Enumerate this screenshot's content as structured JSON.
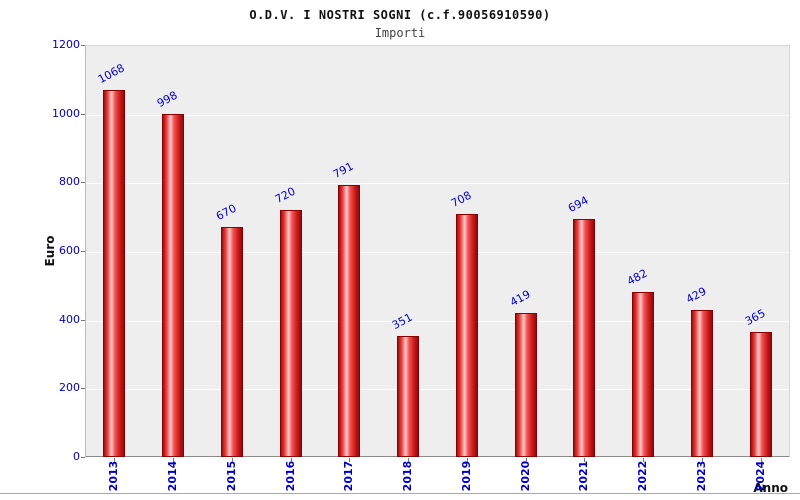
{
  "header": {
    "title": "O.D.V. I NOSTRI SOGNI (c.f.90056910590)",
    "subtitle": "Importi"
  },
  "chart_data": {
    "type": "bar",
    "title": "O.D.V. I NOSTRI SOGNI (c.f.90056910590)",
    "subtitle": "Importi",
    "categories": [
      "2013",
      "2014",
      "2015",
      "2016",
      "2017",
      "2018",
      "2019",
      "2020",
      "2021",
      "2022",
      "2023",
      "2024"
    ],
    "values": [
      1068,
      998,
      670,
      720,
      791,
      351,
      708,
      419,
      694,
      482,
      429,
      365
    ],
    "xlabel": "Anno",
    "ylabel": "Euro",
    "ylim": [
      0,
      1200
    ],
    "ytick_step": 200,
    "ytick_labels": [
      "0",
      "200",
      "400",
      "600",
      "800",
      "1000",
      "1200"
    ],
    "legend": "none",
    "grid": "horizontal-white",
    "colors": {
      "bar_fill": "#e03030",
      "bar_highlight": "#ffc8c8",
      "bar_edge": "#8a0000",
      "tick_label": "#0000cc",
      "value_label": "#0000cc",
      "plot_background": "#eeeeee",
      "gridline": "#ffffff",
      "title_text": "#111111"
    }
  }
}
